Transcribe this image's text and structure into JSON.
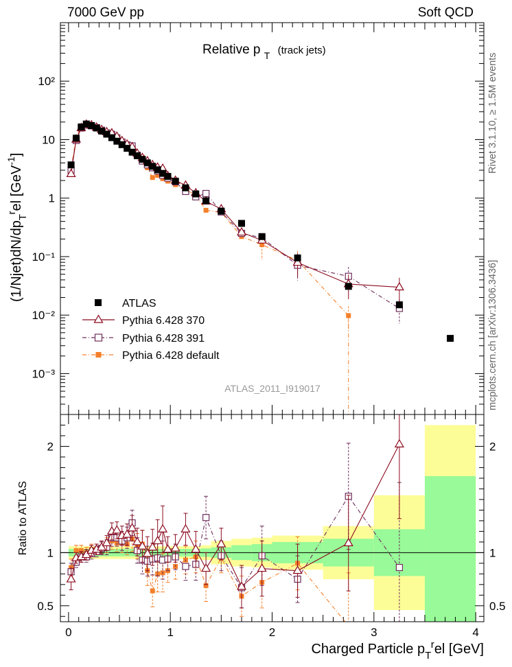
{
  "header": {
    "left": "7000 GeV pp",
    "right": "Soft QCD"
  },
  "side_labels": {
    "rivet": "Rivet 3.1.10, ≥ 1.5M events",
    "mcplots": "mcplots.cern.ch [arXiv:1306.3436]"
  },
  "colors": {
    "atlas": "#000000",
    "p370": "#8b0a1e",
    "p391": "#6e2e5c",
    "pdef": "#f47f2a",
    "band_inner": "#98fa98",
    "band_outer": "#fdfd97"
  },
  "chart_data": [
    {
      "type": "scatter",
      "panel": "main",
      "title_main": "Relative p",
      "title_sub": "T",
      "title_suffix": "(track jets)",
      "ylabel": "(1/Njet)dN/dp T r el [GeV-1]",
      "yscale": "log",
      "ylim": [
        0.0002,
        1000
      ],
      "xlim": [
        -0.08,
        4.08
      ],
      "analysis_label": "ATLAS_2011_I919017",
      "y_tick_labels": [
        "10⁻³",
        "10⁻²",
        "10⁻¹",
        "1",
        "10",
        "10²"
      ],
      "legend_position": "middle-left",
      "series": [
        {
          "name": "ATLAS",
          "x": [
            0.025,
            0.075,
            0.125,
            0.175,
            0.225,
            0.275,
            0.325,
            0.375,
            0.425,
            0.475,
            0.525,
            0.575,
            0.625,
            0.675,
            0.725,
            0.775,
            0.825,
            0.875,
            0.925,
            0.975,
            1.05,
            1.15,
            1.25,
            1.35,
            1.5,
            1.7,
            1.9,
            2.25,
            2.75,
            3.25,
            3.75
          ],
          "y": [
            3.7,
            10.6,
            16.5,
            18.5,
            17.4,
            15.8,
            14.0,
            12.4,
            10.8,
            9.4,
            8.2,
            7.1,
            6.1,
            5.3,
            4.6,
            4.0,
            3.5,
            3.05,
            2.65,
            2.35,
            1.95,
            1.5,
            1.18,
            0.9,
            0.6,
            0.37,
            0.22,
            0.095,
            0.031,
            0.015,
            0.004
          ]
        },
        {
          "name": "Pythia 6.428 370",
          "x": [
            0.025,
            0.075,
            0.125,
            0.175,
            0.225,
            0.275,
            0.325,
            0.375,
            0.425,
            0.475,
            0.525,
            0.575,
            0.625,
            0.675,
            0.725,
            0.775,
            0.825,
            0.875,
            0.925,
            0.975,
            1.05,
            1.15,
            1.25,
            1.35,
            1.5,
            1.7,
            1.9,
            2.25,
            2.75,
            3.25
          ],
          "y": [
            2.6,
            10.1,
            15.9,
            18.2,
            17.7,
            16.2,
            14.7,
            13.5,
            12.9,
            11.3,
            9.5,
            8.3,
            7.5,
            5.8,
            4.9,
            4.3,
            3.7,
            3.35,
            3.2,
            2.4,
            2.0,
            1.65,
            1.22,
            0.88,
            0.65,
            0.26,
            0.19,
            0.079,
            0.034,
            0.03
          ]
        },
        {
          "name": "Pythia 6.428 391",
          "x": [
            0.025,
            0.075,
            0.125,
            0.175,
            0.225,
            0.275,
            0.325,
            0.375,
            0.425,
            0.475,
            0.525,
            0.575,
            0.625,
            0.675,
            0.725,
            0.775,
            0.825,
            0.875,
            0.925,
            0.975,
            1.05,
            1.15,
            1.25,
            1.35,
            1.5,
            1.7,
            1.9,
            2.25,
            2.75,
            3.25
          ],
          "y": [
            3.0,
            9.7,
            15.8,
            17.7,
            17.2,
            16.0,
            14.5,
            13.0,
            12.3,
            10.7,
            9.1,
            8.1,
            7.8,
            5.4,
            4.3,
            3.7,
            3.3,
            2.9,
            2.45,
            2.2,
            1.9,
            1.3,
            1.05,
            1.2,
            0.58,
            0.25,
            0.21,
            0.071,
            0.046,
            0.013
          ]
        },
        {
          "name": "Pythia 6.428 default",
          "x": [
            0.025,
            0.075,
            0.125,
            0.175,
            0.225,
            0.275,
            0.325,
            0.375,
            0.425,
            0.475,
            0.525,
            0.575,
            0.625,
            0.675,
            0.725,
            0.775,
            0.825,
            0.875,
            0.925,
            0.975,
            1.05,
            1.15,
            1.25,
            1.35,
            1.5,
            1.7,
            1.9,
            2.25,
            2.75
          ],
          "y": [
            3.2,
            10.8,
            16.9,
            18.6,
            17.9,
            16.3,
            14.6,
            13.3,
            12.0,
            10.2,
            8.9,
            7.7,
            6.9,
            5.6,
            5.0,
            3.3,
            2.25,
            2.45,
            2.15,
            1.95,
            1.7,
            1.4,
            1.13,
            0.62,
            0.57,
            0.22,
            0.16,
            0.086,
            0.0098
          ]
        }
      ]
    },
    {
      "type": "scatter",
      "panel": "ratio",
      "ylabel": "Ratio to ATLAS",
      "xlabel": "Charged Particle p T r el [GeV]",
      "ylim": [
        0.35,
        2.3
      ],
      "xlim": [
        -0.08,
        4.08
      ],
      "x_ticks": [
        0,
        1,
        2,
        3,
        4
      ],
      "y_ticks": [
        0.5,
        1,
        2
      ],
      "bands": {
        "edges": [
          0.0,
          0.05,
          0.1,
          0.15,
          0.2,
          0.25,
          0.3,
          0.35,
          0.4,
          0.45,
          0.5,
          0.55,
          0.6,
          0.65,
          0.7,
          0.75,
          0.8,
          0.85,
          0.9,
          0.95,
          1.0,
          1.1,
          1.2,
          1.3,
          1.4,
          1.6,
          1.8,
          2.0,
          2.5,
          3.0,
          3.5,
          4.0
        ],
        "inner": [
          0.035,
          0.035,
          0.035,
          0.035,
          0.035,
          0.035,
          0.035,
          0.035,
          0.035,
          0.035,
          0.035,
          0.035,
          0.035,
          0.035,
          0.035,
          0.035,
          0.035,
          0.035,
          0.035,
          0.035,
          0.035,
          0.035,
          0.035,
          0.04,
          0.05,
          0.07,
          0.08,
          0.1,
          0.13,
          0.22,
          0.72
        ],
        "outer": [
          0.06,
          0.06,
          0.06,
          0.06,
          0.06,
          0.06,
          0.06,
          0.06,
          0.06,
          0.06,
          0.06,
          0.06,
          0.06,
          0.06,
          0.06,
          0.06,
          0.06,
          0.06,
          0.06,
          0.06,
          0.06,
          0.06,
          0.06,
          0.07,
          0.11,
          0.13,
          0.14,
          0.16,
          0.25,
          0.54,
          1.2
        ]
      },
      "series": [
        {
          "name": "Pythia 6.428 370",
          "x": [
            0.025,
            0.075,
            0.125,
            0.175,
            0.225,
            0.275,
            0.325,
            0.375,
            0.425,
            0.475,
            0.525,
            0.575,
            0.625,
            0.675,
            0.725,
            0.775,
            0.825,
            0.875,
            0.925,
            0.975,
            1.05,
            1.15,
            1.25,
            1.35,
            1.5,
            1.7,
            1.9,
            2.25,
            2.75,
            3.25
          ],
          "y": [
            0.75,
            0.95,
            0.96,
            0.98,
            1.02,
            1.03,
            1.05,
            1.09,
            1.2,
            1.21,
            1.16,
            1.17,
            1.23,
            1.1,
            1.06,
            0.99,
            1.05,
            1.11,
            1.22,
            1.03,
            1.04,
            1.22,
            1.03,
            0.85,
            1.08,
            0.68,
            0.85,
            0.83,
            1.09,
            2.02
          ],
          "err": [
            0.1,
            0.05,
            0.05,
            0.05,
            0.05,
            0.05,
            0.06,
            0.07,
            0.08,
            0.08,
            0.09,
            0.1,
            0.12,
            0.13,
            0.15,
            0.16,
            0.17,
            0.2,
            0.22,
            0.12,
            0.13,
            0.15,
            0.17,
            0.15,
            0.15,
            0.2,
            0.26,
            0.25,
            0.45,
            0.7
          ]
        },
        {
          "name": "Pythia 6.428 391",
          "x": [
            0.025,
            0.075,
            0.125,
            0.175,
            0.225,
            0.275,
            0.325,
            0.375,
            0.425,
            0.475,
            0.525,
            0.575,
            0.625,
            0.675,
            0.725,
            0.775,
            0.825,
            0.875,
            0.925,
            0.975,
            1.05,
            1.15,
            1.25,
            1.35,
            1.5,
            1.7,
            1.9,
            2.25,
            2.75,
            3.25
          ],
          "y": [
            0.82,
            0.91,
            0.96,
            0.96,
            0.99,
            1.01,
            1.04,
            1.05,
            1.14,
            1.14,
            1.11,
            1.14,
            1.28,
            1.02,
            0.93,
            0.92,
            0.94,
            0.95,
            0.93,
            0.94,
            0.96,
            0.87,
            0.89,
            1.33,
            0.97,
            0.67,
            0.97,
            0.75,
            1.53,
            0.86
          ],
          "err": [
            0.08,
            0.05,
            0.05,
            0.05,
            0.05,
            0.05,
            0.06,
            0.07,
            0.08,
            0.08,
            0.09,
            0.1,
            0.12,
            0.12,
            0.13,
            0.14,
            0.15,
            0.17,
            0.18,
            0.11,
            0.12,
            0.13,
            0.15,
            0.2,
            0.14,
            0.19,
            0.28,
            0.22,
            0.5,
            0.8
          ]
        },
        {
          "name": "Pythia 6.428 default",
          "x": [
            0.025,
            0.075,
            0.125,
            0.175,
            0.225,
            0.275,
            0.325,
            0.375,
            0.425,
            0.475,
            0.525,
            0.575,
            0.625,
            0.675,
            0.725,
            0.775,
            0.825,
            0.875,
            0.925,
            0.975,
            1.05,
            1.15,
            1.25,
            1.35,
            1.5,
            1.7,
            1.9,
            2.25,
            2.75
          ],
          "y": [
            0.86,
            1.02,
            1.02,
            1.0,
            1.03,
            1.03,
            1.04,
            1.07,
            1.11,
            1.09,
            1.09,
            1.08,
            1.13,
            1.06,
            1.08,
            0.83,
            0.64,
            0.8,
            0.81,
            0.83,
            0.87,
            0.93,
            0.96,
            0.69,
            0.95,
            0.59,
            0.72,
            0.9,
            0.31
          ],
          "err": [
            0.08,
            0.05,
            0.05,
            0.05,
            0.05,
            0.05,
            0.06,
            0.07,
            0.08,
            0.08,
            0.09,
            0.1,
            0.12,
            0.12,
            0.13,
            0.14,
            0.15,
            0.17,
            0.18,
            0.11,
            0.12,
            0.13,
            0.15,
            0.15,
            0.14,
            0.19,
            0.24,
            0.25,
            0.5
          ]
        }
      ]
    }
  ]
}
